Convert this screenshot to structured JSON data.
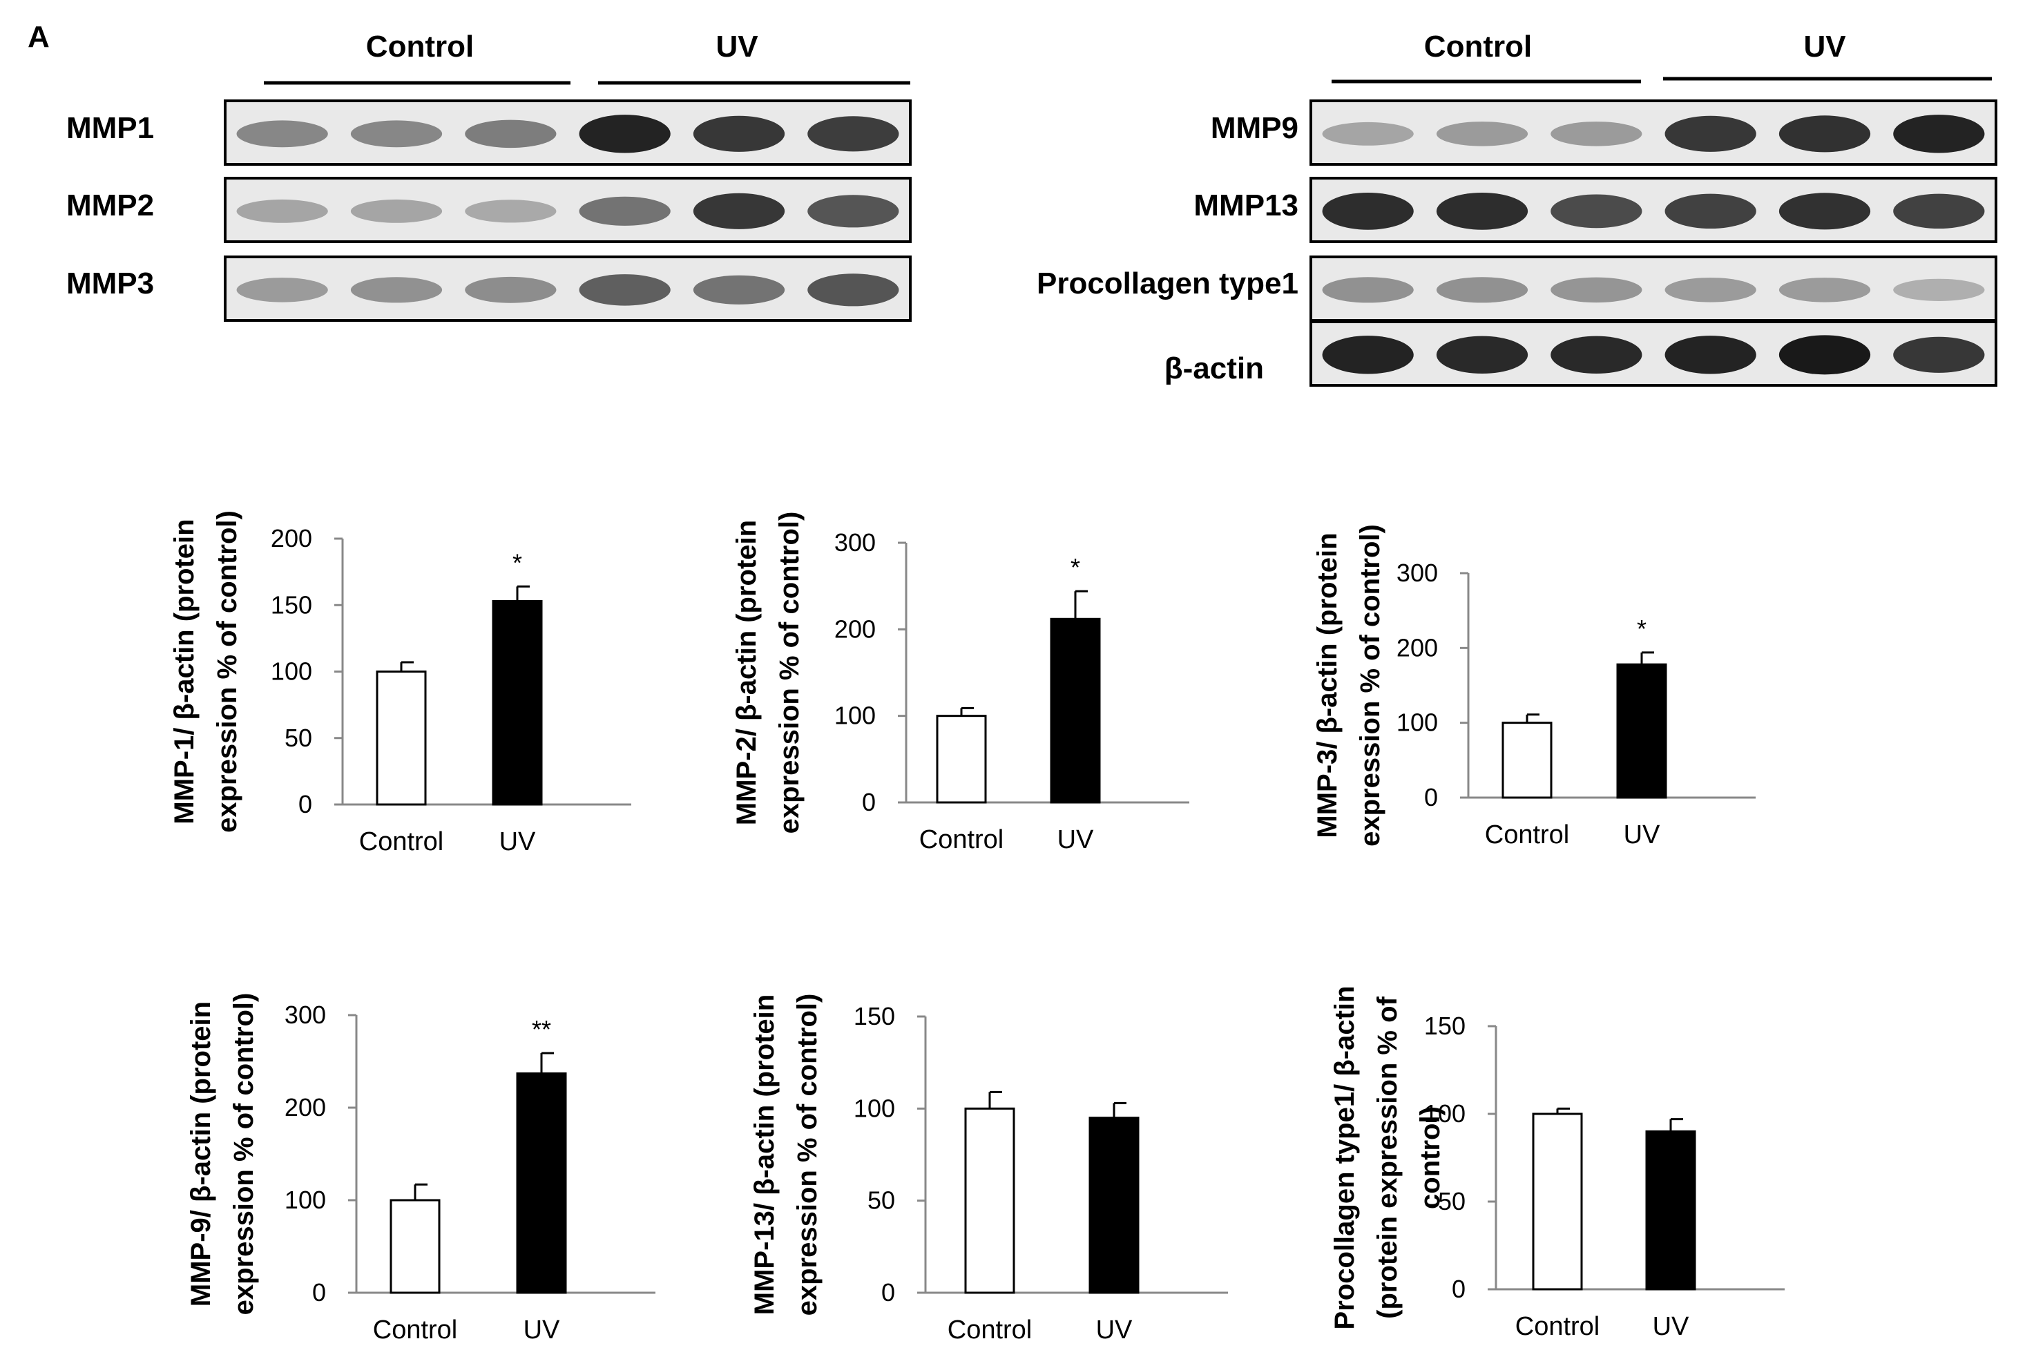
{
  "figure": {
    "panel_letter": "A"
  },
  "blots": [
    {
      "group_labels": [
        "Control",
        "UV"
      ],
      "rows": [
        {
          "label": "MMP1",
          "intensities": [
            0.45,
            0.45,
            0.5,
            0.95,
            0.85,
            0.82
          ]
        },
        {
          "label": "MMP2",
          "intensities": [
            0.3,
            0.3,
            0.28,
            0.55,
            0.85,
            0.7
          ]
        },
        {
          "label": "MMP3",
          "intensities": [
            0.35,
            0.4,
            0.42,
            0.65,
            0.55,
            0.7
          ]
        }
      ]
    },
    {
      "group_labels": [
        "Control",
        "UV"
      ],
      "rows": [
        {
          "label": "MMP9",
          "intensities": [
            0.3,
            0.35,
            0.35,
            0.85,
            0.88,
            0.95
          ]
        },
        {
          "label": "MMP13",
          "intensities": [
            0.9,
            0.9,
            0.75,
            0.8,
            0.88,
            0.8
          ]
        },
        {
          "label": "Procollagen type1",
          "intensities": [
            0.4,
            0.4,
            0.38,
            0.35,
            0.35,
            0.25
          ]
        },
        {
          "label": "β-actin",
          "intensities": [
            0.95,
            0.92,
            0.92,
            0.95,
            1.0,
            0.85
          ]
        }
      ]
    }
  ],
  "chart_data": [
    {
      "type": "bar",
      "categories": [
        "Control",
        "UV"
      ],
      "values": [
        100,
        153
      ],
      "errors": [
        7,
        11
      ],
      "significance": [
        "",
        "*"
      ],
      "yticks": [
        0,
        50,
        100,
        150,
        200
      ],
      "ylim": [
        0,
        200
      ],
      "ylabel_lines": [
        "MMP-1/ β-actin (protein",
        "expression % of control)"
      ],
      "colors": [
        "#ffffff",
        "#000000"
      ]
    },
    {
      "type": "bar",
      "categories": [
        "Control",
        "UV"
      ],
      "values": [
        100,
        212
      ],
      "errors": [
        9,
        32
      ],
      "significance": [
        "",
        "*"
      ],
      "yticks": [
        0,
        100,
        200,
        300
      ],
      "ylim": [
        0,
        300
      ],
      "ylabel_lines": [
        "MMP-2/ β-actin (protein",
        "expression % of control)"
      ],
      "colors": [
        "#ffffff",
        "#000000"
      ]
    },
    {
      "type": "bar",
      "categories": [
        "Control",
        "UV"
      ],
      "values": [
        100,
        178
      ],
      "errors": [
        11,
        16
      ],
      "significance": [
        "",
        "*"
      ],
      "yticks": [
        0,
        100,
        200,
        300
      ],
      "ylim": [
        0,
        300
      ],
      "ylabel_lines": [
        "MMP-3/ β-actin (protein",
        "expression % of control)"
      ],
      "colors": [
        "#ffffff",
        "#000000"
      ]
    },
    {
      "type": "bar",
      "categories": [
        "Control",
        "UV"
      ],
      "values": [
        100,
        237
      ],
      "errors": [
        17,
        22
      ],
      "significance": [
        "",
        "**"
      ],
      "yticks": [
        0,
        100,
        200,
        300
      ],
      "ylim": [
        0,
        300
      ],
      "ylabel_lines": [
        "MMP-9/ β-actin (protein",
        "expression % of control)"
      ],
      "colors": [
        "#ffffff",
        "#000000"
      ]
    },
    {
      "type": "bar",
      "categories": [
        "Control",
        "UV"
      ],
      "values": [
        100,
        95
      ],
      "errors": [
        9,
        8
      ],
      "significance": [
        "",
        ""
      ],
      "yticks": [
        0,
        50,
        100,
        150
      ],
      "ylim": [
        0,
        150
      ],
      "ylabel_lines": [
        "MMP-13/ β-actin (protein",
        "expression % of control)"
      ],
      "colors": [
        "#ffffff",
        "#000000"
      ]
    },
    {
      "type": "bar",
      "categories": [
        "Control",
        "UV"
      ],
      "values": [
        100,
        90
      ],
      "errors": [
        3,
        7
      ],
      "significance": [
        "",
        ""
      ],
      "yticks": [
        0,
        50,
        100,
        150
      ],
      "ylim": [
        0,
        150
      ],
      "ylabel_lines": [
        "Procollagen type1/ β-actin",
        "(protein expression % of",
        "control)"
      ],
      "colors": [
        "#ffffff",
        "#000000"
      ]
    }
  ]
}
